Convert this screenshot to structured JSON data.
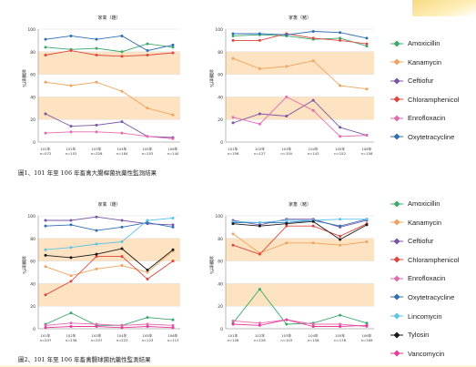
{
  "figure1": {
    "caption": "圖1、101 年至 106 年畜禽大腸桿菌抗藥性監測結果",
    "panels": [
      {
        "title": "家禽（雞）",
        "ylabel": "抗藥性%"
      },
      {
        "title": "家畜（豬）",
        "ylabel": "抗藥性%"
      }
    ]
  },
  "figure2": {
    "caption": "圖2、101 年至 106 年畜禽腸球菌抗藥性監測結果",
    "panels": [
      {
        "title": "家禽（雞）",
        "ylabel": "抗藥性%"
      },
      {
        "title": "家畜（豬）",
        "ylabel": "抗藥性%"
      }
    ]
  },
  "colors": {
    "Amoxicillin": "#3aa86b",
    "Kanamycin": "#f0a35c",
    "Ceftiofur": "#7a55a6",
    "Chloramphenicol": "#e0463c",
    "Enrofloxacin": "#e46bb0",
    "Oxytetracycline": "#2f6fb5",
    "Lincomycin": "#5cc3e8",
    "Tylosin": "#1a1a1a",
    "Vancomycin": "#e83a9a"
  },
  "legend1": [
    "Amoxicillin",
    "Kanamycin",
    "Ceftiofur",
    "Chloramphenicol",
    "Enrofloxacin",
    "Oxytetracycline"
  ],
  "legend2": [
    "Amoxicillin",
    "Kanamycin",
    "Ceftiofur",
    "Chloramphenicol",
    "Enrofloxacin",
    "Oxytetracycline",
    "Lincomycin",
    "Tylosin",
    "Vancomycin"
  ],
  "chart_data": [
    {
      "type": "line",
      "title": "家禽（雞）",
      "ylabel": "抗藥性%",
      "ylim": [
        0,
        100
      ],
      "yticks": [
        0,
        20,
        40,
        60,
        80,
        100
      ],
      "categories": [
        "101年 n=072",
        "102年 n=153",
        "103年 n=326",
        "104年 n=184",
        "105年 n=153",
        "106年 n=140"
      ],
      "series": [
        {
          "name": "Amoxicillin",
          "values": [
            84,
            82,
            83,
            80,
            87,
            84
          ]
        },
        {
          "name": "Kanamycin",
          "values": [
            53,
            50,
            53,
            45,
            30,
            24
          ]
        },
        {
          "name": "Ceftiofur",
          "values": [
            25,
            14,
            15,
            18,
            5,
            4
          ]
        },
        {
          "name": "Chloramphenicol",
          "values": [
            77,
            81,
            77,
            76,
            77,
            79
          ]
        },
        {
          "name": "Enrofloxacin",
          "values": [
            8,
            9,
            9,
            8,
            5,
            3
          ]
        },
        {
          "name": "Oxytetracycline",
          "values": [
            91,
            94,
            91,
            94,
            81,
            86
          ]
        }
      ]
    },
    {
      "type": "line",
      "title": "家畜（豬）",
      "ylabel": "抗藥性%",
      "ylim": [
        0,
        100
      ],
      "yticks": [
        0,
        20,
        40,
        60,
        80,
        100
      ],
      "categories": [
        "101年 n=156",
        "102年 n=127",
        "103年 n=150",
        "104年 n=143",
        "105年 n=152",
        "106年 n=158"
      ],
      "series": [
        {
          "name": "Amoxicillin",
          "values": [
            94,
            95,
            94,
            91,
            92,
            85
          ]
        },
        {
          "name": "Kanamycin",
          "values": [
            74,
            65,
            67,
            72,
            50,
            47
          ]
        },
        {
          "name": "Ceftiofur",
          "values": [
            17,
            25,
            23,
            37,
            13,
            6
          ]
        },
        {
          "name": "Chloramphenicol",
          "values": [
            90,
            90,
            96,
            92,
            90,
            87
          ]
        },
        {
          "name": "Enrofloxacin",
          "values": [
            22,
            16,
            40,
            28,
            5,
            6
          ]
        },
        {
          "name": "Oxytetracycline",
          "values": [
            96,
            96,
            95,
            98,
            97,
            92
          ]
        }
      ]
    },
    {
      "type": "line",
      "title": "家禽（雞）",
      "ylabel": "抗藥性%",
      "ylim": [
        0,
        100
      ],
      "yticks": [
        0,
        20,
        40,
        60,
        80,
        100
      ],
      "categories": [
        "101年 n=207",
        "102年 n=236",
        "103年 n=207",
        "104年 n=223",
        "105年 n=123",
        "106年 n=113"
      ],
      "series": [
        {
          "name": "Amoxicillin",
          "values": [
            4,
            14,
            3,
            3,
            10,
            8
          ]
        },
        {
          "name": "Kanamycin",
          "values": [
            55,
            47,
            53,
            56,
            50,
            69
          ]
        },
        {
          "name": "Ceftiofur",
          "values": [
            96,
            96,
            99,
            96,
            93,
            92
          ]
        },
        {
          "name": "Chloramphenicol",
          "values": [
            30,
            42,
            64,
            64,
            44,
            60
          ]
        },
        {
          "name": "Enrofloxacin",
          "values": [
            3,
            5,
            4,
            3,
            4,
            3
          ]
        },
        {
          "name": "Oxytetracycline",
          "values": [
            91,
            92,
            87,
            90,
            94,
            90
          ]
        },
        {
          "name": "Lincomycin",
          "values": [
            70,
            72,
            75,
            77,
            96,
            98
          ]
        },
        {
          "name": "Tylosin",
          "values": [
            65,
            63,
            66,
            71,
            52,
            70
          ]
        },
        {
          "name": "Vancomycin",
          "values": [
            1,
            2,
            2,
            1,
            2,
            1
          ]
        }
      ]
    },
    {
      "type": "line",
      "title": "家畜（豬）",
      "ylabel": "抗藥性%",
      "ylim": [
        0,
        100
      ],
      "yticks": [
        0,
        20,
        40,
        60,
        80,
        100
      ],
      "categories": [
        "101年 n=128",
        "102年 n=128",
        "103年 n=103",
        "104年 n=158",
        "105年 n=178",
        "106年 n=169"
      ],
      "series": [
        {
          "name": "Amoxicillin",
          "values": [
            5,
            35,
            4,
            5,
            12,
            5
          ]
        },
        {
          "name": "Kanamycin",
          "values": [
            84,
            67,
            76,
            76,
            74,
            77
          ]
        },
        {
          "name": "Ceftiofur",
          "values": [
            96,
            92,
            97,
            97,
            90,
            96
          ]
        },
        {
          "name": "Chloramphenicol",
          "values": [
            74,
            66,
            91,
            91,
            82,
            93
          ]
        },
        {
          "name": "Enrofloxacin",
          "values": [
            7,
            5,
            8,
            4,
            4,
            2
          ]
        },
        {
          "name": "Oxytetracycline",
          "values": [
            94,
            94,
            94,
            96,
            91,
            97
          ]
        },
        {
          "name": "Lincomycin",
          "values": [
            95,
            94,
            96,
            96,
            97,
            97
          ]
        },
        {
          "name": "Tylosin",
          "values": [
            93,
            91,
            93,
            95,
            79,
            92
          ]
        },
        {
          "name": "Vancomycin",
          "values": [
            4,
            3,
            8,
            2,
            2,
            3
          ]
        }
      ]
    }
  ]
}
